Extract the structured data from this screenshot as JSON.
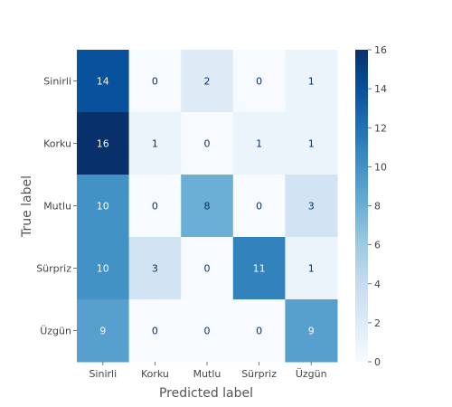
{
  "chart_data": {
    "type": "heatmap",
    "title": "",
    "xlabel": "Predicted label",
    "ylabel": "True label",
    "x_categories": [
      "Sinirli",
      "Korku",
      "Mutlu",
      "Sürpriz",
      "Üzgün"
    ],
    "y_categories": [
      "Sinirli",
      "Korku",
      "Mutlu",
      "Sürpriz",
      "Üzgün"
    ],
    "values": [
      [
        14,
        0,
        2,
        0,
        1
      ],
      [
        16,
        1,
        0,
        1,
        1
      ],
      [
        10,
        0,
        8,
        0,
        3
      ],
      [
        10,
        3,
        0,
        11,
        1
      ],
      [
        9,
        0,
        0,
        0,
        9
      ]
    ],
    "colormap": "Blues",
    "vmin": 0,
    "vmax": 16,
    "colorbar_ticks": [
      0,
      2,
      4,
      6,
      8,
      10,
      12,
      14,
      16
    ],
    "grid": false
  },
  "colors": {
    "low": "#f7fbff",
    "high": "#08306b",
    "text_dark": "#08306b",
    "text_light": "#f7fbff"
  }
}
